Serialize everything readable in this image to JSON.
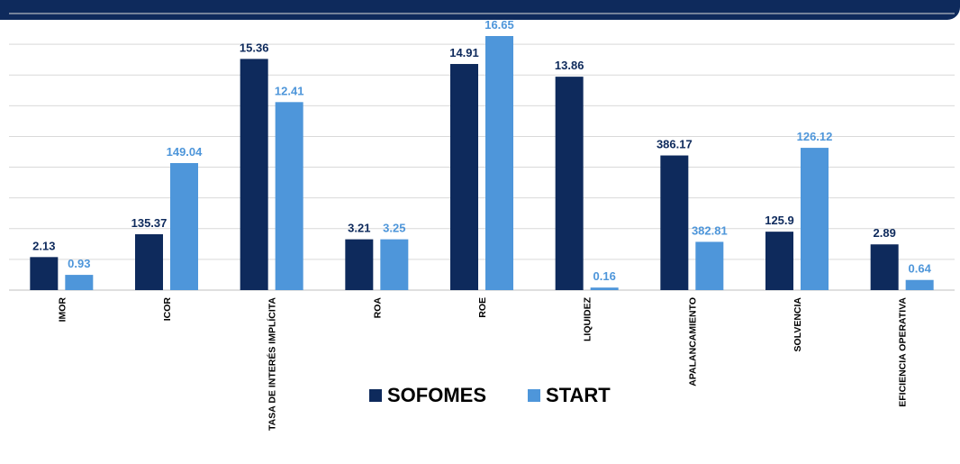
{
  "chart_data": {
    "type": "bar",
    "title": "",
    "xlabel": "",
    "ylabel": "",
    "categories": [
      "IMOR",
      "ICOR",
      "TASA DE INTERÉS IMPLÍCITA",
      "ROA",
      "ROE",
      "LIQUIDEZ",
      "APALANCAMIENTO",
      "SOLVENCIA",
      "EFICIENCIA OPERATIVA"
    ],
    "series": [
      {
        "name": "SOFOMES",
        "color": "#0e2a5c",
        "values": [
          2.13,
          135.37,
          15.36,
          3.21,
          14.91,
          13.86,
          386.17,
          125.9,
          2.89
        ],
        "labels": [
          "2.13",
          "135.37",
          "15.36",
          "3.21",
          "14.91",
          "13.86",
          "386.17",
          "125.9",
          "2.89"
        ]
      },
      {
        "name": "START",
        "color": "#4e96da",
        "values": [
          0.93,
          149.04,
          12.41,
          3.25,
          16.65,
          0.16,
          382.81,
          126.12,
          0.64
        ],
        "labels": [
          "0.93",
          "149.04",
          "12.41",
          "3.25",
          "16.65",
          "0.16",
          "382.81",
          "126.12",
          "0.64"
        ]
      }
    ],
    "bar_levels_fraction_of_axis": {
      "SOFOMES": [
        0.13,
        0.22,
        0.91,
        0.2,
        0.89,
        0.84,
        0.53,
        0.23,
        0.18
      ],
      "START": [
        0.06,
        0.5,
        0.74,
        0.2,
        1.0,
        0.01,
        0.19,
        0.56,
        0.04
      ]
    },
    "grid": true,
    "gridline_count": 9,
    "legend_position": "bottom"
  }
}
